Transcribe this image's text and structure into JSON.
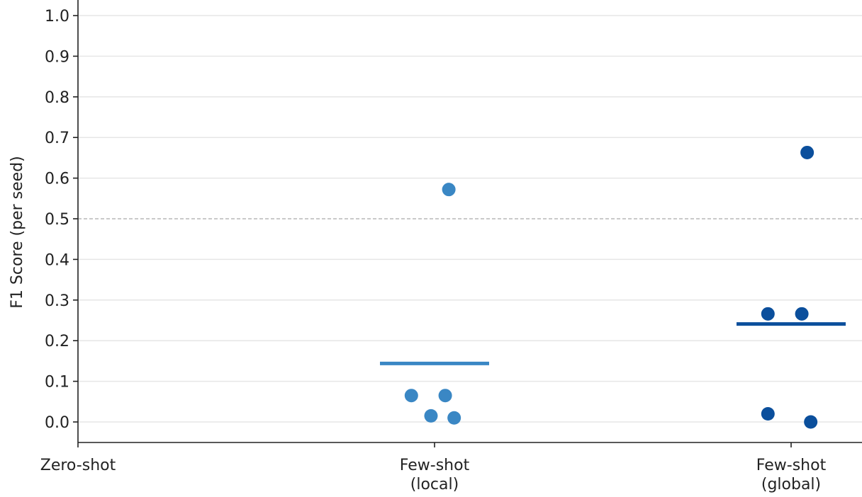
{
  "chart_data": {
    "type": "scatter",
    "ylabel": "F1 Score (per seed)",
    "ylim": [
      -0.05,
      1.0
    ],
    "yticks": [
      0.0,
      0.1,
      0.2,
      0.3,
      0.4,
      0.5,
      0.6,
      0.7,
      0.8,
      0.9,
      1.0
    ],
    "ytick_labels": [
      "0.0",
      "0.1",
      "0.2",
      "0.3",
      "0.4",
      "0.5",
      "0.6",
      "0.7",
      "0.8",
      "0.9",
      "1.0"
    ],
    "categories": [
      {
        "label_lines": [
          "Zero-shot"
        ]
      },
      {
        "label_lines": [
          "Few-shot",
          "(local)"
        ]
      },
      {
        "label_lines": [
          "Few-shot",
          "(global)"
        ]
      }
    ],
    "grid": "horizontal",
    "reference_line": {
      "y": 0.5,
      "style": "dashed"
    },
    "series": [
      {
        "category": "Few-shot (local)",
        "color": "#3a87c4",
        "points": [
          {
            "offset": 0.04,
            "y": 0.572
          },
          {
            "offset": -0.065,
            "y": 0.065
          },
          {
            "offset": 0.03,
            "y": 0.065
          },
          {
            "offset": -0.01,
            "y": 0.015
          },
          {
            "offset": 0.055,
            "y": 0.01
          }
        ],
        "mean": 0.144
      },
      {
        "category": "Few-shot (global)",
        "color": "#0b4f9c",
        "points": [
          {
            "offset": 0.045,
            "y": 0.663
          },
          {
            "offset": -0.065,
            "y": 0.266
          },
          {
            "offset": 0.03,
            "y": 0.266
          },
          {
            "offset": -0.065,
            "y": 0.02
          },
          {
            "offset": 0.055,
            "y": 0.0
          }
        ],
        "mean": 0.241
      }
    ]
  },
  "colors": {
    "axis": "#222222",
    "grid": "#e6e6e6",
    "reference": "#aaaaaa"
  }
}
